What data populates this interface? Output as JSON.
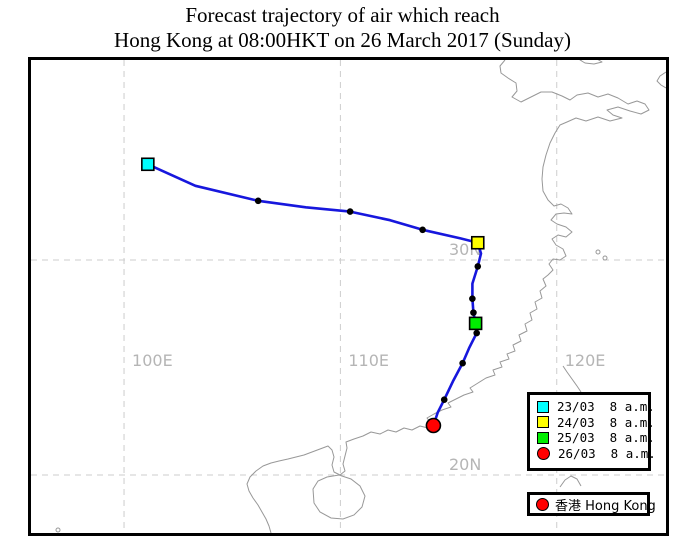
{
  "title": {
    "line1": "Forecast trajectory of air which reach",
    "line2": "Hong Kong at 08:00HKT on 26 March 2017 (Sunday)"
  },
  "chart_data": {
    "type": "line",
    "title": "Forecast trajectory of air which reach Hong Kong at 08:00HKT on 26 March 2017 (Sunday)",
    "description": "Air parcel back-trajectory plotted on a map of southeast China, ending at Hong Kong",
    "x_axis": {
      "tick_values": [
        100,
        110,
        120
      ],
      "tick_labels": [
        "100E",
        "110E",
        "120E"
      ],
      "range": [
        95.7,
        125.05
      ]
    },
    "y_axis": {
      "tick_values": [
        30,
        20
      ],
      "tick_labels": [
        "30N",
        "20N"
      ],
      "range": [
        17.3,
        39.3
      ]
    },
    "grid": "dashed",
    "legend_position": "inside lower right",
    "trajectory": {
      "name": "Forecast air trajectory",
      "color": "#1717dd",
      "points": [
        {
          "lon": 101.1,
          "lat": 34.45,
          "marker": "square",
          "color": "#00ffff",
          "time": "23/03 8 a.m."
        },
        {
          "lon": 103.3,
          "lat": 33.45,
          "marker": "none"
        },
        {
          "lon": 106.2,
          "lat": 32.75,
          "marker": "dot"
        },
        {
          "lon": 108.4,
          "lat": 32.45,
          "marker": "none"
        },
        {
          "lon": 110.45,
          "lat": 32.25,
          "marker": "dot"
        },
        {
          "lon": 112.3,
          "lat": 31.85,
          "marker": "none"
        },
        {
          "lon": 113.8,
          "lat": 31.4,
          "marker": "dot"
        },
        {
          "lon": 115.55,
          "lat": 31.0,
          "marker": "none"
        },
        {
          "lon": 116.35,
          "lat": 30.8,
          "marker": "square",
          "color": "#ffff00",
          "time": "24/03 8 a.m."
        },
        {
          "lon": 116.5,
          "lat": 30.3,
          "marker": "none"
        },
        {
          "lon": 116.35,
          "lat": 29.7,
          "marker": "dot"
        },
        {
          "lon": 116.1,
          "lat": 28.9,
          "marker": "none"
        },
        {
          "lon": 116.1,
          "lat": 28.2,
          "marker": "dot"
        },
        {
          "lon": 116.15,
          "lat": 27.55,
          "marker": "dot"
        },
        {
          "lon": 116.25,
          "lat": 27.05,
          "marker": "square",
          "color": "#00ee00",
          "time": "25/03 8 a.m."
        },
        {
          "lon": 116.3,
          "lat": 26.6,
          "marker": "dot"
        },
        {
          "lon": 115.95,
          "lat": 25.9,
          "marker": "none"
        },
        {
          "lon": 115.65,
          "lat": 25.2,
          "marker": "dot"
        },
        {
          "lon": 115.2,
          "lat": 24.35,
          "marker": "none"
        },
        {
          "lon": 114.8,
          "lat": 23.5,
          "marker": "dot"
        },
        {
          "lon": 114.5,
          "lat": 22.9,
          "marker": "none"
        },
        {
          "lon": 114.3,
          "lat": 22.3,
          "marker": "circle",
          "color": "#ff0000",
          "time": "26/03 8 a.m."
        }
      ]
    },
    "landmark": {
      "name": "Hong Kong",
      "lon": 114.3,
      "lat": 22.3
    }
  },
  "legend": {
    "items": [
      {
        "shape": "square",
        "color": "#00ffff",
        "label": "23/03  8 a.m."
      },
      {
        "shape": "square",
        "color": "#ffff00",
        "label": "24/03  8 a.m."
      },
      {
        "shape": "square",
        "color": "#00ee00",
        "label": "25/03  8 a.m."
      },
      {
        "shape": "circle",
        "color": "#ff0000",
        "label": "26/03  8 a.m."
      }
    ]
  },
  "hk_legend": {
    "shape": "circle",
    "color": "#ff0000",
    "label": "香港 Hong Kong"
  },
  "colors": {
    "trajectory": "#1717dd",
    "dot": "#000000",
    "gridline": "#cdcdcd",
    "grid_label": "#b5b5b5",
    "coastline": "#989898"
  }
}
